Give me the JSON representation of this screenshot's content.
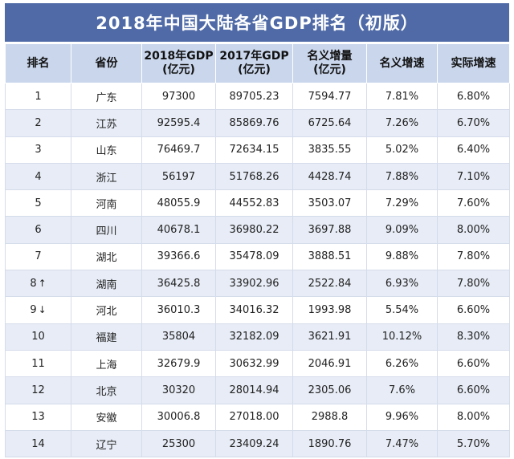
{
  "title": "2018年中国大陆各省GDP排名（初版）",
  "columns": [
    {
      "line1": "排名",
      "line2": ""
    },
    {
      "line1": "省份",
      "line2": ""
    },
    {
      "line1": "2018年GDP",
      "line2": "(亿元)"
    },
    {
      "line1": "2017年GDP",
      "line2": "(亿元)"
    },
    {
      "line1": "名义增量",
      "line2": "(亿元)"
    },
    {
      "line1": "名义增速",
      "line2": ""
    },
    {
      "line1": "实际增速",
      "line2": ""
    }
  ],
  "rows": [
    {
      "rank": "1",
      "arrow": "",
      "province": "广东",
      "gdp2018": "97300",
      "gdp2017": "89705.23",
      "increase": "7594.77",
      "nominal": "7.81%",
      "real": "6.80%"
    },
    {
      "rank": "2",
      "arrow": "",
      "province": "江苏",
      "gdp2018": "92595.4",
      "gdp2017": "85869.76",
      "increase": "6725.64",
      "nominal": "7.26%",
      "real": "6.70%"
    },
    {
      "rank": "3",
      "arrow": "",
      "province": "山东",
      "gdp2018": "76469.7",
      "gdp2017": "72634.15",
      "increase": "3835.55",
      "nominal": "5.02%",
      "real": "6.40%"
    },
    {
      "rank": "4",
      "arrow": "",
      "province": "浙江",
      "gdp2018": "56197",
      "gdp2017": "51768.26",
      "increase": "4428.74",
      "nominal": "7.88%",
      "real": "7.10%"
    },
    {
      "rank": "5",
      "arrow": "",
      "province": "河南",
      "gdp2018": "48055.9",
      "gdp2017": "44552.83",
      "increase": "3503.07",
      "nominal": "7.29%",
      "real": "7.60%"
    },
    {
      "rank": "6",
      "arrow": "",
      "province": "四川",
      "gdp2018": "40678.1",
      "gdp2017": "36980.22",
      "increase": "3697.88",
      "nominal": "9.09%",
      "real": "8.00%"
    },
    {
      "rank": "7",
      "arrow": "",
      "province": "湖北",
      "gdp2018": "39366.6",
      "gdp2017": "35478.09",
      "increase": "3888.51",
      "nominal": "9.88%",
      "real": "7.80%"
    },
    {
      "rank": "8",
      "arrow": "↑",
      "province": "湖南",
      "gdp2018": "36425.8",
      "gdp2017": "33902.96",
      "increase": "2522.84",
      "nominal": "6.93%",
      "real": "7.80%"
    },
    {
      "rank": "9",
      "arrow": "↓",
      "province": "河北",
      "gdp2018": "36010.3",
      "gdp2017": "34016.32",
      "increase": "1993.98",
      "nominal": "5.54%",
      "real": "6.60%"
    },
    {
      "rank": "10",
      "arrow": "",
      "province": "福建",
      "gdp2018": "35804",
      "gdp2017": "32182.09",
      "increase": "3621.91",
      "nominal": "10.12%",
      "real": "8.30%"
    },
    {
      "rank": "11",
      "arrow": "",
      "province": "上海",
      "gdp2018": "32679.9",
      "gdp2017": "30632.99",
      "increase": "2046.91",
      "nominal": "6.26%",
      "real": "6.60%"
    },
    {
      "rank": "12",
      "arrow": "",
      "province": "北京",
      "gdp2018": "30320",
      "gdp2017": "28014.94",
      "increase": "2305.06",
      "nominal": "7.6%",
      "real": "6.60%"
    },
    {
      "rank": "13",
      "arrow": "",
      "province": "安徽",
      "gdp2018": "30006.8",
      "gdp2017": "27018.00",
      "increase": "2988.8",
      "nominal": "9.96%",
      "real": "8.00%"
    },
    {
      "rank": "14",
      "arrow": "",
      "province": "辽宁",
      "gdp2018": "25300",
      "gdp2017": "23409.24",
      "increase": "1890.76",
      "nominal": "7.47%",
      "real": "5.70%"
    }
  ]
}
